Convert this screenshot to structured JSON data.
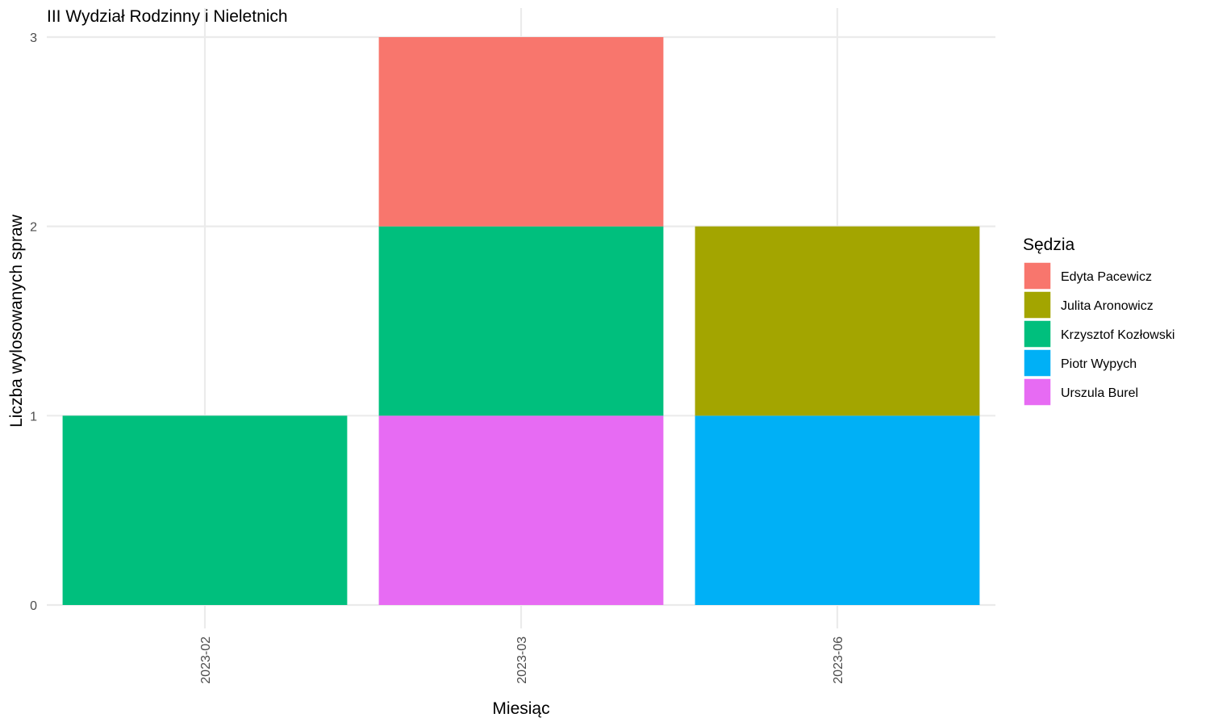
{
  "chart_data": {
    "type": "bar",
    "stacked": true,
    "title": "III Wydział Rodzinny i Nieletnich",
    "xlabel": "Miesiąc",
    "ylabel": "Liczba wylosowanych spraw",
    "categories": [
      "2023-02",
      "2023-03",
      "2023-06"
    ],
    "ylim": [
      0,
      3
    ],
    "yticks": [
      0,
      1,
      2,
      3
    ],
    "grid": true,
    "legend": {
      "title": "Sędzia",
      "position": "right"
    },
    "series": [
      {
        "name": "Edyta Pacewicz",
        "color": "#F8766D",
        "values": [
          0,
          1,
          0
        ]
      },
      {
        "name": "Julita Aronowicz",
        "color": "#A3A500",
        "values": [
          0,
          0,
          1
        ]
      },
      {
        "name": "Krzysztof Kozłowski",
        "color": "#00BF7D",
        "values": [
          1,
          1,
          0
        ]
      },
      {
        "name": "Piotr Wypych",
        "color": "#00B0F6",
        "values": [
          0,
          0,
          1
        ]
      },
      {
        "name": "Urszula Burel",
        "color": "#E76BF3",
        "values": [
          0,
          1,
          0
        ]
      }
    ]
  }
}
